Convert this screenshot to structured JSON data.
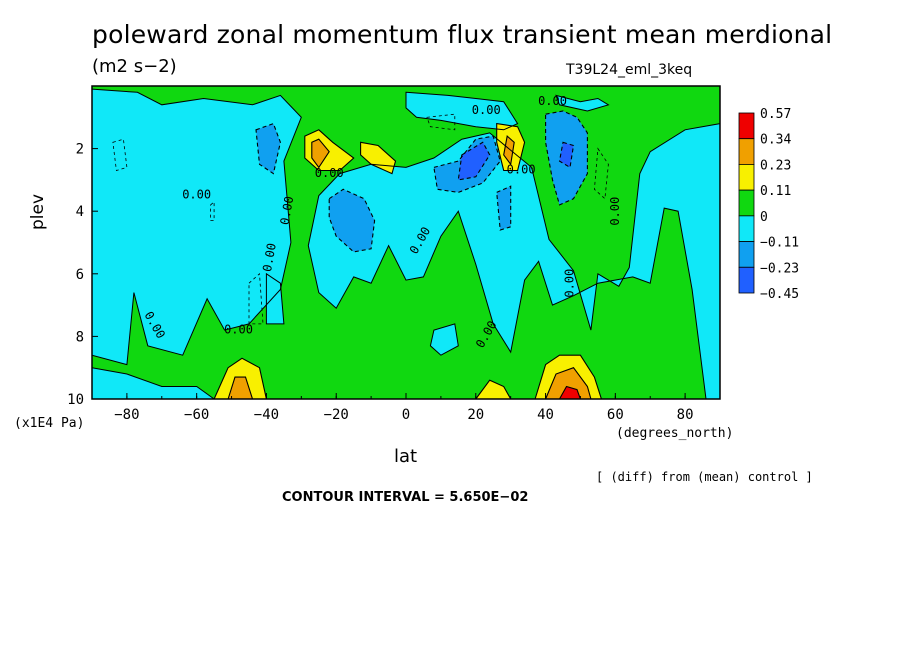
{
  "chart_data": {
    "type": "heatmap",
    "title": "poleward zonal momentum flux transient mean merdional",
    "units": "(m2 s−2)",
    "run_id": "T39L24_eml_3keq",
    "xlabel": "lat",
    "ylabel": "plev",
    "x_units": "(degrees_north)",
    "y_units": "(x1E4 Pa)",
    "xlim": [
      -90,
      90
    ],
    "ylim": [
      10,
      0
    ],
    "x_ticks": [
      -80,
      -60,
      -40,
      -20,
      0,
      20,
      40,
      60,
      80
    ],
    "x_tick_labels": [
      "−80",
      "−60",
      "−40",
      "−20",
      "0",
      "20",
      "40",
      "60",
      "80"
    ],
    "y_ticks": [
      2,
      4,
      6,
      8,
      10
    ],
    "y_tick_labels": [
      "2",
      "4",
      "6",
      "8",
      "10"
    ],
    "colorbar": {
      "labels": [
        "0.57",
        "0.34",
        "0.23",
        "0.11",
        "0",
        "−0.11",
        "−0.23",
        "−0.45"
      ],
      "colors": [
        "#ef0000",
        "#f0a000",
        "#f8f000",
        "#10d810",
        "#10e8f8",
        "#10a0f0",
        "#2060ff"
      ]
    },
    "contour_labels": [
      "0.00",
      "0.00",
      "0.00",
      "0.00",
      "0.00",
      "0.00",
      "0.00",
      "0.00",
      "0.00",
      "0.00",
      "0.00",
      "0.00",
      "0.00"
    ],
    "contour_interval_label": "CONTOUR INTERVAL = 5.650E−02",
    "note": "[ (diff) from (mean) control ]",
    "fill_regions": [
      {
        "level": "cyan",
        "poly": [
          [
            -90,
            0.1
          ],
          [
            -77,
            0.2
          ],
          [
            -70,
            0.6
          ],
          [
            -58,
            0.4
          ],
          [
            -44,
            0.6
          ],
          [
            -36,
            0.3
          ],
          [
            -30,
            1.0
          ],
          [
            -35,
            2.4
          ],
          [
            -33,
            5.0
          ],
          [
            -36,
            6.5
          ],
          [
            -45,
            7.6
          ],
          [
            -52,
            7.8
          ],
          [
            -57,
            6.8
          ],
          [
            -64,
            8.6
          ],
          [
            -74,
            8.3
          ],
          [
            -78,
            6.6
          ],
          [
            -80,
            8.9
          ],
          [
            -90,
            8.6
          ]
        ]
      },
      {
        "level": "cyan",
        "poly": [
          [
            -90,
            9.0
          ],
          [
            -80,
            9.2
          ],
          [
            -70,
            9.6
          ],
          [
            -60,
            9.6
          ],
          [
            -55,
            10
          ],
          [
            -90,
            10
          ]
        ]
      },
      {
        "level": "cyan",
        "poly": [
          [
            -19,
            2.8
          ],
          [
            -10,
            2.5
          ],
          [
            0,
            2.6
          ],
          [
            8,
            2.3
          ],
          [
            16,
            1.7
          ],
          [
            24,
            1.5
          ],
          [
            36,
            2.6
          ],
          [
            41,
            4.9
          ],
          [
            48,
            5.9
          ],
          [
            53,
            7.8
          ],
          [
            55,
            6.0
          ],
          [
            61,
            6.4
          ],
          [
            64,
            5.8
          ],
          [
            67,
            2.8
          ],
          [
            70,
            2.1
          ],
          [
            80,
            1.4
          ],
          [
            90,
            1.2
          ],
          [
            90,
            10
          ],
          [
            86,
            10
          ],
          [
            82,
            6.5
          ],
          [
            78,
            4.0
          ],
          [
            74,
            3.9
          ],
          [
            70,
            6.3
          ],
          [
            65,
            6.1
          ],
          [
            55,
            6.3
          ],
          [
            48,
            6.7
          ],
          [
            42,
            7.0
          ],
          [
            38,
            5.6
          ],
          [
            34,
            6.2
          ],
          [
            30,
            8.5
          ],
          [
            25,
            7.6
          ],
          [
            20,
            5.7
          ],
          [
            15,
            4.0
          ],
          [
            10,
            4.8
          ],
          [
            5,
            6.1
          ],
          [
            0,
            6.2
          ],
          [
            -5,
            5.1
          ],
          [
            -10,
            6.3
          ],
          [
            -15,
            6.1
          ],
          [
            -20,
            7.1
          ],
          [
            -25,
            6.6
          ],
          [
            -28,
            5.1
          ],
          [
            -25,
            3.5
          ]
        ]
      },
      {
        "level": "cyan",
        "poly": [
          [
            0,
            0.2
          ],
          [
            12,
            0.3
          ],
          [
            20,
            0.4
          ],
          [
            28,
            0.5
          ],
          [
            32,
            1.2
          ],
          [
            28,
            1.4
          ],
          [
            20,
            1.3
          ],
          [
            10,
            1.1
          ],
          [
            3,
            1.0
          ],
          [
            0,
            0.7
          ]
        ]
      },
      {
        "level": "cyan",
        "poly": [
          [
            43,
            0.3
          ],
          [
            50,
            0.5
          ],
          [
            55,
            0.4
          ],
          [
            58,
            0.6
          ],
          [
            52,
            0.8
          ],
          [
            44,
            0.6
          ]
        ]
      },
      {
        "level": "cyan",
        "poly": [
          [
            8,
            7.8
          ],
          [
            14,
            7.6
          ],
          [
            15,
            8.3
          ],
          [
            10,
            8.6
          ],
          [
            7,
            8.3
          ]
        ]
      },
      {
        "level": "cyan",
        "poly": [
          [
            -40,
            6.0
          ],
          [
            -36,
            6.3
          ],
          [
            -35,
            7.6
          ],
          [
            -40,
            7.6
          ]
        ]
      },
      {
        "level": "blue",
        "poly": [
          [
            -43,
            1.4
          ],
          [
            -38,
            1.2
          ],
          [
            -36,
            1.8
          ],
          [
            -38,
            2.8
          ],
          [
            -42,
            2.5
          ]
        ]
      },
      {
        "level": "blue",
        "poly": [
          [
            -22,
            3.6
          ],
          [
            -18,
            3.3
          ],
          [
            -12,
            3.6
          ],
          [
            -9,
            4.3
          ],
          [
            -10,
            5.2
          ],
          [
            -15,
            5.3
          ],
          [
            -20,
            4.8
          ],
          [
            -22,
            4.2
          ]
        ]
      },
      {
        "level": "blue",
        "poly": [
          [
            8,
            2.6
          ],
          [
            15,
            2.4
          ],
          [
            20,
            1.7
          ],
          [
            25,
            1.6
          ],
          [
            27,
            2.4
          ],
          [
            22,
            3.1
          ],
          [
            15,
            3.4
          ],
          [
            9,
            3.3
          ]
        ]
      },
      {
        "level": "blue",
        "poly": [
          [
            40,
            0.9
          ],
          [
            45,
            0.8
          ],
          [
            49,
            1.0
          ],
          [
            52,
            1.5
          ],
          [
            52,
            2.8
          ],
          [
            48,
            3.6
          ],
          [
            44,
            3.8
          ],
          [
            42,
            3.0
          ],
          [
            40,
            1.8
          ]
        ]
      },
      {
        "level": "blue",
        "poly": [
          [
            26,
            3.4
          ],
          [
            30,
            3.2
          ],
          [
            30,
            4.5
          ],
          [
            27,
            4.6
          ]
        ]
      },
      {
        "level": "dblue",
        "poly": [
          [
            16,
            2.2
          ],
          [
            22,
            1.8
          ],
          [
            24,
            2.2
          ],
          [
            20,
            2.9
          ],
          [
            15,
            3.0
          ]
        ]
      },
      {
        "level": "dblue",
        "poly": [
          [
            45,
            1.8
          ],
          [
            48,
            1.9
          ],
          [
            47,
            2.6
          ],
          [
            44,
            2.4
          ]
        ]
      },
      {
        "level": "yellow",
        "poly": [
          [
            -29,
            1.6
          ],
          [
            -25,
            1.4
          ],
          [
            -21,
            1.8
          ],
          [
            -15,
            2.3
          ],
          [
            -19,
            2.7
          ],
          [
            -25,
            2.7
          ],
          [
            -29,
            2.3
          ]
        ]
      },
      {
        "level": "yellow",
        "poly": [
          [
            -13,
            1.8
          ],
          [
            -8,
            1.9
          ],
          [
            -3,
            2.4
          ],
          [
            -4,
            2.8
          ],
          [
            -10,
            2.5
          ],
          [
            -13,
            2.2
          ]
        ]
      },
      {
        "level": "yellow",
        "poly": [
          [
            26,
            1.2
          ],
          [
            32,
            1.3
          ],
          [
            34,
            1.8
          ],
          [
            32,
            2.7
          ],
          [
            28,
            2.7
          ],
          [
            26,
            1.8
          ]
        ]
      },
      {
        "level": "yellow",
        "poly": [
          [
            -55,
            10
          ],
          [
            -51,
            9.0
          ],
          [
            -47,
            8.7
          ],
          [
            -42,
            9.0
          ],
          [
            -40,
            10
          ]
        ]
      },
      {
        "level": "yellow",
        "poly": [
          [
            37,
            10
          ],
          [
            40,
            8.9
          ],
          [
            44,
            8.6
          ],
          [
            50,
            8.6
          ],
          [
            54,
            9.3
          ],
          [
            56,
            10
          ]
        ]
      },
      {
        "level": "yellow",
        "poly": [
          [
            20,
            10
          ],
          [
            24,
            9.4
          ],
          [
            28,
            9.6
          ],
          [
            30,
            10
          ]
        ]
      },
      {
        "level": "orange",
        "poly": [
          [
            -27,
            1.8
          ],
          [
            -25,
            1.7
          ],
          [
            -22,
            2.1
          ],
          [
            -25,
            2.6
          ],
          [
            -27,
            2.3
          ]
        ]
      },
      {
        "level": "orange",
        "poly": [
          [
            29,
            1.6
          ],
          [
            31,
            1.8
          ],
          [
            30,
            2.5
          ],
          [
            28,
            2.2
          ]
        ]
      },
      {
        "level": "orange",
        "poly": [
          [
            -51,
            10
          ],
          [
            -49,
            9.3
          ],
          [
            -46,
            9.3
          ],
          [
            -44,
            10
          ]
        ]
      },
      {
        "level": "orange",
        "poly": [
          [
            40,
            10
          ],
          [
            43,
            9.2
          ],
          [
            48,
            9.0
          ],
          [
            52,
            9.6
          ],
          [
            53,
            10
          ]
        ]
      },
      {
        "level": "red",
        "poly": [
          [
            44,
            10
          ],
          [
            46,
            9.6
          ],
          [
            49,
            9.7
          ],
          [
            50,
            10
          ]
        ]
      }
    ]
  }
}
